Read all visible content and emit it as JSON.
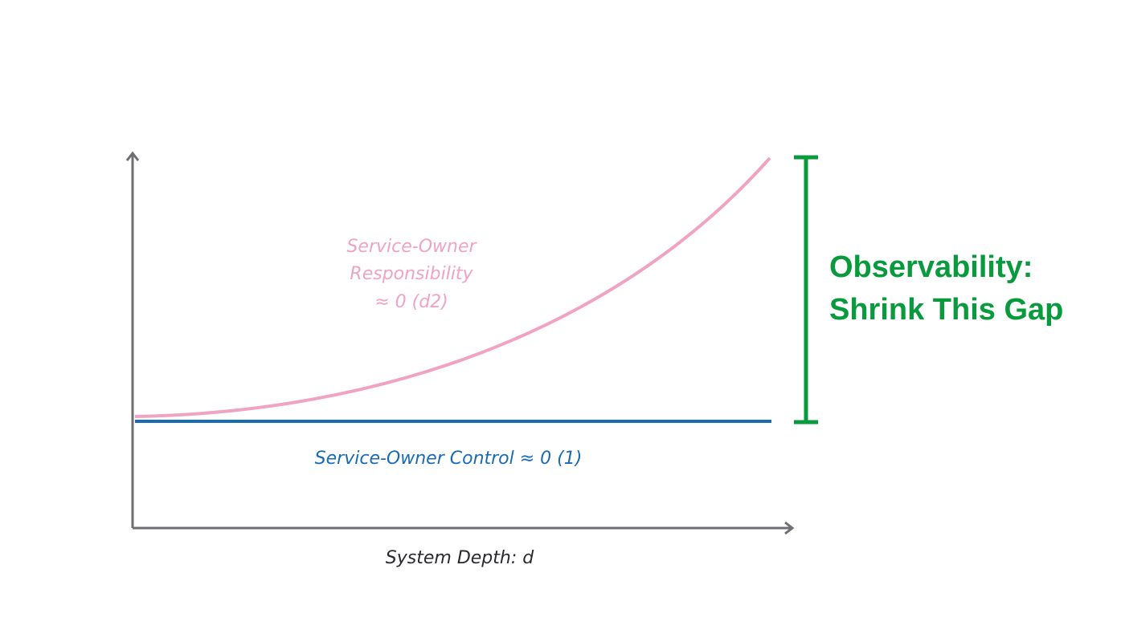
{
  "x_axis": {
    "label": "System Depth: d"
  },
  "responsibility": {
    "lines": [
      "Service-Owner",
      "Responsibility",
      "≈ 0 (d2)"
    ]
  },
  "control": {
    "label": "Service-Owner Control ≈ 0 (1)"
  },
  "gap": {
    "lines": [
      "Observability:",
      "Shrink This Gap"
    ]
  }
}
